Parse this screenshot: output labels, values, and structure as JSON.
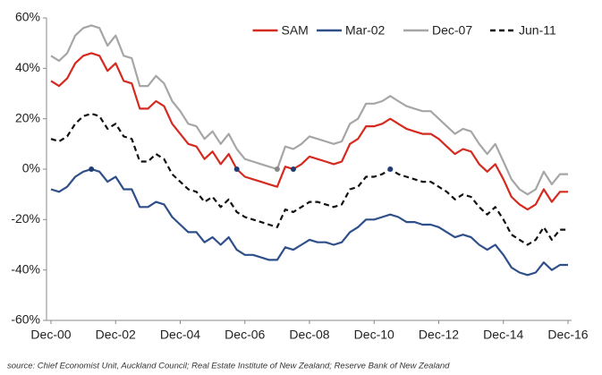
{
  "chart_data": {
    "type": "line",
    "source": "source: Chief Economist Unit, Auckland Council; Real Estate Institute of New Zealand; Reserve Bank of New Zealand",
    "categories": [
      "Dec-00",
      null,
      null,
      null,
      null,
      null,
      null,
      null,
      "Dec-02",
      null,
      null,
      null,
      null,
      null,
      null,
      null,
      "Dec-04",
      null,
      null,
      null,
      null,
      null,
      null,
      null,
      "Dec-06",
      null,
      null,
      null,
      null,
      null,
      null,
      null,
      "Dec-08",
      null,
      null,
      null,
      null,
      null,
      null,
      null,
      "Dec-10",
      null,
      null,
      null,
      null,
      null,
      null,
      null,
      "Dec-12",
      null,
      null,
      null,
      null,
      null,
      null,
      null,
      "Dec-14",
      null,
      null,
      null,
      null,
      null,
      null,
      null,
      "Dec-16"
    ],
    "ylim": [
      -60,
      60
    ],
    "yticks": [
      {
        "value": -60,
        "label": "-60%"
      },
      {
        "value": -40,
        "label": "-40%"
      },
      {
        "value": -20,
        "label": "-20%"
      },
      {
        "value": 0,
        "label": "0%"
      },
      {
        "value": 20,
        "label": "20%"
      },
      {
        "value": 40,
        "label": "40%"
      },
      {
        "value": 60,
        "label": "60%"
      }
    ],
    "grid": false,
    "legend": "top-right",
    "series": [
      {
        "name": "SAM",
        "color": "#d42a20",
        "dash": false,
        "values": [
          35,
          33,
          36,
          42,
          45,
          46,
          45,
          39,
          42,
          35,
          34,
          24,
          24,
          27,
          25,
          18,
          14,
          10,
          9,
          4,
          7,
          2,
          6,
          0,
          -3,
          -4,
          -5,
          -6,
          -7,
          1,
          0,
          2,
          5,
          4,
          3,
          2,
          3,
          10,
          12,
          17,
          17,
          18,
          20,
          18,
          16,
          15,
          14,
          14,
          12,
          9,
          6,
          8,
          7,
          2,
          -1,
          2,
          -4,
          -11,
          -14,
          -16,
          -14,
          -8,
          -13,
          -9,
          -9
        ]
      },
      {
        "name": "Mar-02",
        "color": "#2f4f8a",
        "dash": false,
        "values": [
          -8,
          -9,
          -7,
          -3,
          -1,
          0,
          -1,
          -5,
          -3,
          -8,
          -8,
          -15,
          -15,
          -13,
          -14,
          -19,
          -22,
          -25,
          -25,
          -29,
          -27,
          -30,
          -27,
          -32,
          -34,
          -34,
          -35,
          -36,
          -36,
          -31,
          -32,
          -30,
          -28,
          -29,
          -29,
          -30,
          -29,
          -25,
          -23,
          -20,
          -20,
          -19,
          -18,
          -19,
          -21,
          -21,
          -22,
          -22,
          -23,
          -25,
          -27,
          -26,
          -27,
          -30,
          -32,
          -30,
          -34,
          -39,
          -41,
          -42,
          -41,
          -37,
          -40,
          -38,
          -38
        ]
      },
      {
        "name": "Dec-07",
        "color": "#a6a6a6",
        "dash": false,
        "values": [
          45,
          43,
          46,
          53,
          56,
          57,
          56,
          49,
          53,
          45,
          44,
          33,
          33,
          37,
          34,
          27,
          23,
          18,
          17,
          12,
          15,
          10,
          14,
          8,
          4,
          3,
          2,
          1,
          0,
          9,
          8,
          10,
          13,
          12,
          11,
          10,
          11,
          18,
          20,
          26,
          26,
          27,
          29,
          27,
          25,
          24,
          23,
          23,
          20,
          17,
          14,
          16,
          15,
          10,
          6,
          10,
          3,
          -4,
          -8,
          -10,
          -8,
          -1,
          -6,
          -2,
          -2
        ]
      },
      {
        "name": "Jun-11",
        "color": "#111111",
        "dash": true,
        "values": [
          12,
          11,
          13,
          18,
          21,
          22,
          21,
          16,
          18,
          13,
          12,
          3,
          3,
          6,
          4,
          -2,
          -5,
          -8,
          -9,
          -13,
          -11,
          -15,
          -12,
          -17,
          -19,
          -20,
          -21,
          -22,
          -23,
          -16,
          -17,
          -15,
          -13,
          -13,
          -14,
          -15,
          -14,
          -8,
          -7,
          -3,
          -3,
          -2,
          0,
          -2,
          -3,
          -4,
          -5,
          -5,
          -7,
          -9,
          -12,
          -10,
          -11,
          -15,
          -18,
          -15,
          -20,
          -26,
          -28,
          -30,
          -28,
          -23,
          -28,
          -24,
          -24
        ]
      }
    ]
  }
}
